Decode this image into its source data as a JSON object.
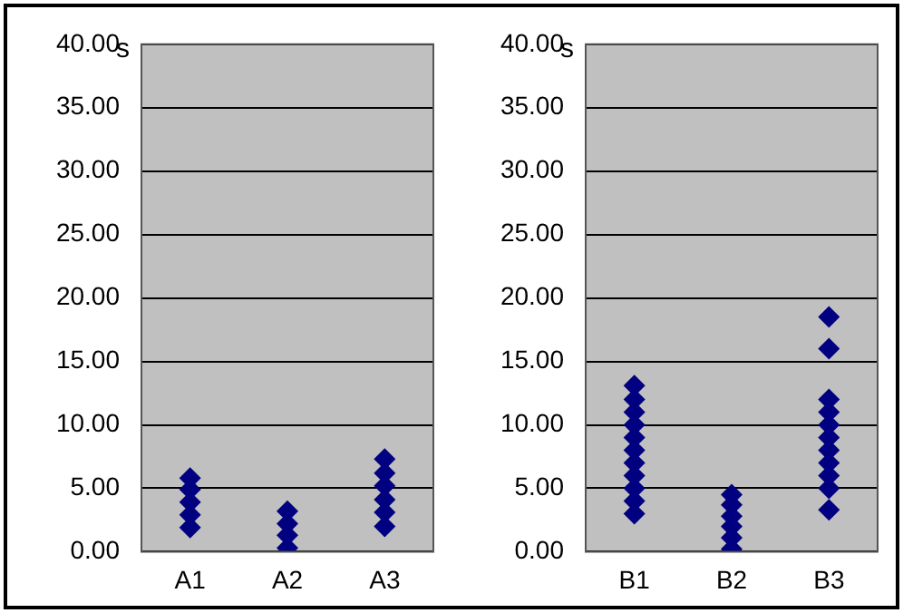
{
  "chart_data": [
    {
      "type": "scatter",
      "ylabel": "s",
      "categories": [
        "A1",
        "A2",
        "A3"
      ],
      "ylim": [
        0,
        40
      ],
      "yticks": [
        {
          "value": 0,
          "label": "0.00"
        },
        {
          "value": 5,
          "label": "5.00"
        },
        {
          "value": 10,
          "label": "10.00"
        },
        {
          "value": 15,
          "label": "15.00"
        },
        {
          "value": 20,
          "label": "20.00"
        },
        {
          "value": 25,
          "label": "25.00"
        },
        {
          "value": 30,
          "label": "30.00"
        },
        {
          "value": 35,
          "label": "35.00"
        },
        {
          "value": 40,
          "label": "40.00"
        }
      ],
      "grid": "y",
      "marker": "diamond",
      "series": [
        {
          "color": "#000080",
          "x": [
            "A1",
            "A1",
            "A1",
            "A1",
            "A1",
            "A2",
            "A2",
            "A2",
            "A2",
            "A3",
            "A3",
            "A3",
            "A3",
            "A3",
            "A3"
          ],
          "values": [
            1.9,
            2.9,
            3.9,
            4.9,
            5.8,
            0.3,
            1.3,
            2.2,
            3.2,
            2.0,
            3.1,
            4.1,
            5.2,
            6.2,
            7.3
          ]
        }
      ]
    },
    {
      "type": "scatter",
      "ylabel": "s",
      "categories": [
        "B1",
        "B2",
        "B3"
      ],
      "ylim": [
        0,
        40
      ],
      "yticks": [
        {
          "value": 0,
          "label": "0.00"
        },
        {
          "value": 5,
          "label": "5.00"
        },
        {
          "value": 10,
          "label": "10.00"
        },
        {
          "value": 15,
          "label": "15.00"
        },
        {
          "value": 20,
          "label": "20.00"
        },
        {
          "value": 25,
          "label": "25.00"
        },
        {
          "value": 30,
          "label": "30.00"
        },
        {
          "value": 35,
          "label": "35.00"
        },
        {
          "value": 40,
          "label": "40.00"
        }
      ],
      "grid": "y",
      "marker": "diamond",
      "series": [
        {
          "color": "#000080",
          "x": [
            "B1",
            "B1",
            "B1",
            "B1",
            "B1",
            "B1",
            "B1",
            "B1",
            "B1",
            "B1",
            "B1",
            "B2",
            "B2",
            "B2",
            "B2",
            "B2",
            "B2",
            "B3",
            "B3",
            "B3",
            "B3",
            "B3",
            "B3",
            "B3",
            "B3",
            "B3",
            "B3",
            "B3"
          ],
          "values": [
            3.0,
            4.0,
            5.0,
            6.0,
            7.0,
            8.0,
            9.0,
            10.0,
            11.0,
            12.0,
            13.1,
            0.2,
            1.1,
            2.0,
            2.8,
            3.7,
            4.5,
            3.3,
            5.0,
            6.0,
            7.0,
            8.0,
            9.0,
            10.0,
            11.0,
            12.0,
            16.0,
            18.5
          ]
        }
      ]
    }
  ]
}
